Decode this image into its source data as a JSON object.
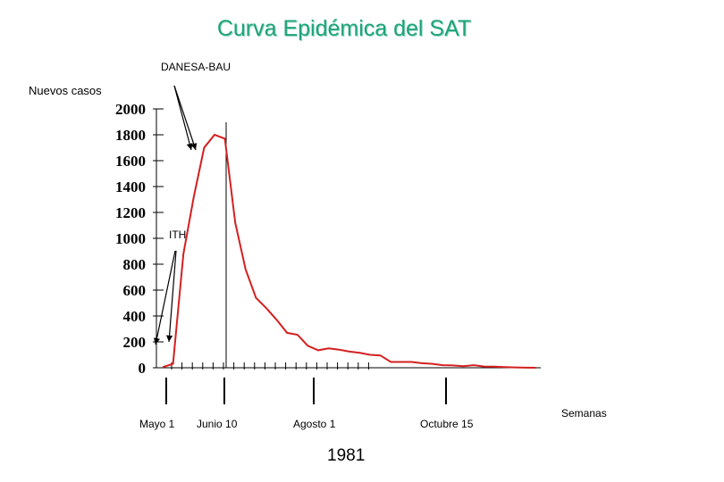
{
  "chart_data": {
    "type": "line",
    "title": "Curva Epidémica del SAT",
    "ylabel": "Nuevos casos",
    "xlabel": "Semanas",
    "year_label": "1981",
    "ylim": [
      0,
      2000
    ],
    "yticks": [
      "0",
      "200",
      "400",
      "600",
      "800",
      "1000",
      "1200",
      "1400",
      "1600",
      "1800",
      "2000"
    ],
    "grid": false,
    "series_color": "#d42020",
    "x_count": 37,
    "series": [
      {
        "values": [
          5,
          30,
          880,
          1320,
          1700,
          1800,
          1770,
          1120,
          760,
          540,
          460,
          370,
          270,
          255,
          170,
          135,
          150,
          140,
          125,
          115,
          100,
          95,
          45,
          45,
          45,
          35,
          30,
          20,
          18,
          12,
          20,
          10,
          8,
          5,
          3,
          1,
          0
        ]
      }
    ],
    "date_markers": [
      {
        "label": "Mayo 1",
        "index": 0
      },
      {
        "label": "Junio 10",
        "index": 6
      },
      {
        "label": "Agosto 1",
        "index": 14
      },
      {
        "label": "Octubre 15",
        "index": 25
      }
    ],
    "annotations": [
      {
        "text": "DANESA-BAU",
        "points_to_index": 4
      },
      {
        "text": "ITH",
        "points_to_index": 0
      }
    ]
  }
}
